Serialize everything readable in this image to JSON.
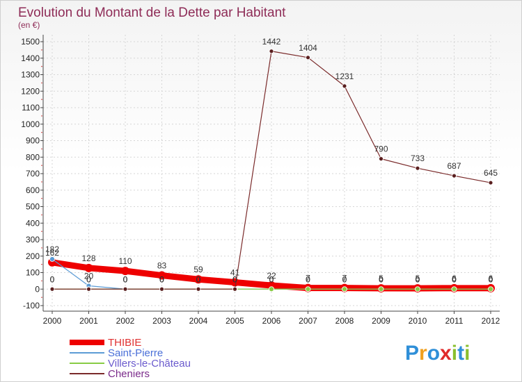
{
  "chart_data": {
    "type": "line",
    "title": "Evolution du Montant de la Dette par Habitant",
    "subtitle": "(en €)",
    "x": [
      "2000",
      "2001",
      "2002",
      "2003",
      "2004",
      "2005",
      "2006",
      "2007",
      "2008",
      "2009",
      "2010",
      "2011",
      "2012"
    ],
    "yticks": [
      -100,
      0,
      100,
      200,
      300,
      400,
      500,
      600,
      700,
      800,
      900,
      1000,
      1100,
      1200,
      1300,
      1400,
      1500
    ],
    "ylim": [
      -100,
      1500
    ],
    "xlabel": "",
    "ylabel": "",
    "series": [
      {
        "name": "THIBIE",
        "color": "#ee0000",
        "values": [
          162,
          128,
          110,
          83,
          59,
          41,
          22,
          7,
          7,
          5,
          5,
          6,
          6
        ],
        "labels": [
          "162",
          "128",
          "110",
          "83",
          "59",
          "41",
          "22",
          "7",
          "7",
          "5",
          "5",
          "6",
          "6"
        ]
      },
      {
        "name": "Saint-Pierre",
        "color": "#5b9bd5",
        "values": [
          182,
          20,
          0,
          0,
          0,
          0,
          0,
          0,
          0,
          0,
          0,
          0,
          0
        ],
        "labels": [
          "182",
          "20",
          "0",
          "0",
          "0",
          "0",
          "0",
          "0",
          "0",
          "0",
          "0",
          "0",
          "0"
        ]
      },
      {
        "name": "Villers-le-Château",
        "color": "#88cc44",
        "values": [
          0,
          0,
          0,
          0,
          0,
          0,
          0,
          0,
          0,
          0,
          0,
          0,
          0
        ],
        "labels": [
          "0",
          "0",
          "0",
          "0",
          "0",
          "0",
          "0",
          "0",
          "0",
          "0",
          "0",
          "0",
          "0"
        ]
      },
      {
        "name": "Cheniers",
        "color": "#7a2a2a",
        "values": [
          0,
          0,
          0,
          0,
          0,
          0,
          1442,
          1404,
          1231,
          790,
          733,
          687,
          645
        ],
        "labels": [
          "0",
          "0",
          "0",
          "0",
          "0",
          "0",
          "1442",
          "1404",
          "1231",
          "790",
          "733",
          "687",
          "645"
        ]
      }
    ]
  },
  "logo": {
    "text": "Proxiti",
    "letters": [
      "P",
      "r",
      "o",
      "x",
      "i",
      "t",
      "i"
    ],
    "colors": [
      "#2f8fd8",
      "#f0a020",
      "#2f8fd8",
      "#e02a2a",
      "#8abf2e",
      "#2f8fd8",
      "#8abf2e"
    ]
  }
}
